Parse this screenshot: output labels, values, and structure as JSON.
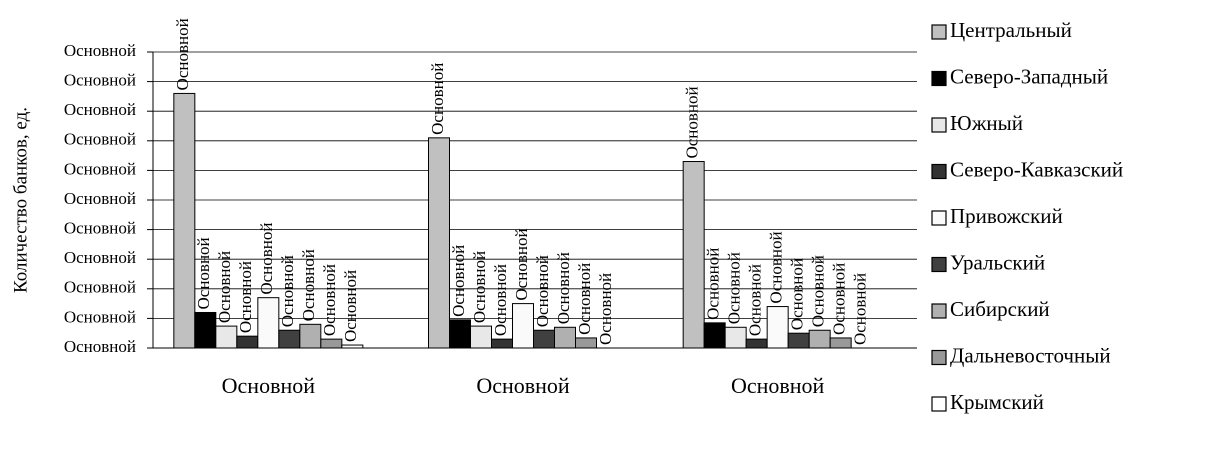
{
  "chart_data": {
    "type": "bar",
    "y_label": "Количество банков, ед.",
    "categories": [
      "Основной",
      "Основной",
      "Основной"
    ],
    "series": [
      {
        "name": "Центральный",
        "color": "#c0c0c0",
        "values": [
          86,
          71,
          63
        ],
        "value_labels": [
          "Основной",
          "Основной",
          "Основной"
        ]
      },
      {
        "name": "Северо-Западный",
        "color": "#000000",
        "values": [
          12,
          9.5,
          8.5
        ],
        "value_labels": [
          "Основной",
          "Основной",
          "Основной"
        ]
      },
      {
        "name": "Южный",
        "color": "#e8e8e8",
        "values": [
          7.4,
          7.4,
          7
        ],
        "value_labels": [
          "Основной",
          "Основной",
          "Основной"
        ]
      },
      {
        "name": "Северо-Кавказский",
        "color": "#333333",
        "values": [
          4,
          3,
          3
        ],
        "value_labels": [
          "Основной",
          "Основной",
          "Основной"
        ]
      },
      {
        "name": "Привожский",
        "color": "#fafafa",
        "values": [
          17,
          15,
          14
        ],
        "value_labels": [
          "Основной",
          "Основной",
          "Основной"
        ]
      },
      {
        "name": "Уральский",
        "color": "#404040",
        "values": [
          6,
          6,
          5
        ],
        "value_labels": [
          "Основной",
          "Основной",
          "Основной"
        ]
      },
      {
        "name": "Сибирский",
        "color": "#b0b0b0",
        "values": [
          8,
          7,
          6
        ],
        "value_labels": [
          "Основной",
          "Основной",
          "Основной"
        ]
      },
      {
        "name": "Дальневосточный",
        "color": "#999999",
        "values": [
          3,
          3.4,
          3.4
        ],
        "value_labels": [
          "Основной",
          "Основной",
          "Основной"
        ]
      },
      {
        "name": "Крымский",
        "color": "#ffffff",
        "values": [
          1,
          0,
          0
        ],
        "value_labels": [
          "Основной",
          "Основной",
          "Основной"
        ]
      }
    ],
    "ylim": [
      0,
      100
    ],
    "yticks": [
      {
        "value": 0,
        "label": "Основной"
      },
      {
        "value": 10,
        "label": "Основной"
      },
      {
        "value": 20,
        "label": "Основной"
      },
      {
        "value": 30,
        "label": "Основной"
      },
      {
        "value": 40,
        "label": "Основной"
      },
      {
        "value": 50,
        "label": "Основной"
      },
      {
        "value": 60,
        "label": "Основной"
      },
      {
        "value": 70,
        "label": "Основной"
      },
      {
        "value": 80,
        "label": "Основной"
      },
      {
        "value": 90,
        "label": "Основной"
      },
      {
        "value": 100,
        "label": "Основной"
      }
    ],
    "grid": true,
    "legend": "right"
  }
}
